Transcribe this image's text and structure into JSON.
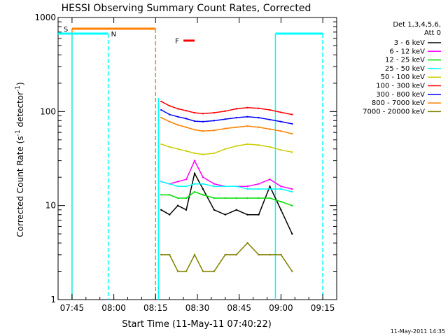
{
  "chart_data": {
    "type": "line",
    "title": "HESSI Observing Summary Count Rates, Corrected",
    "xlabel": "Start Time (11-May-11 07:40:22)",
    "ylabel_main": "Corrected Count Rate (s",
    "ylabel_sup1": "-1",
    "ylabel_mid": " detector",
    "ylabel_sup2": "-1",
    "ylabel_end": ")",
    "footer": "11-May-2011 14:35",
    "yscale": "log",
    "ylim": [
      1,
      1000
    ],
    "xlim_minutes": [
      "07:40",
      "09:20"
    ],
    "x_ticks": [
      "07:45",
      "08:00",
      "08:15",
      "08:30",
      "08:45",
      "09:00",
      "09:15"
    ],
    "y_ticks": [
      "1",
      "10",
      "100",
      "1000"
    ],
    "legend_header": [
      "Det 1,3,4,5,6,",
      "Att 0"
    ],
    "series": [
      {
        "name": "3 - 6 keV",
        "color": "#000000",
        "values": [
          9,
          8,
          10,
          9,
          22,
          15,
          9,
          8,
          9,
          8,
          8,
          16,
          9,
          5
        ]
      },
      {
        "name": "6 - 12 keV",
        "color": "#ff00ff",
        "values": [
          18,
          17,
          18,
          19,
          30,
          20,
          17,
          16,
          16,
          16,
          17,
          19,
          16,
          15
        ]
      },
      {
        "name": "12 - 25 keV",
        "color": "#00dd00",
        "values": [
          13,
          13,
          12,
          12,
          14,
          13,
          12,
          12,
          12,
          12,
          12,
          12,
          11,
          10
        ]
      },
      {
        "name": "25 - 50 keV",
        "color": "#00ffff",
        "values": [
          18,
          17,
          16,
          16,
          17,
          17,
          16,
          16,
          16,
          15,
          15,
          15,
          15,
          14
        ]
      },
      {
        "name": "50 - 100 keV",
        "color": "#cccc00",
        "values": [
          45,
          42,
          40,
          38,
          36,
          35,
          36,
          40,
          43,
          45,
          44,
          42,
          39,
          37
        ]
      },
      {
        "name": "100 - 300 keV",
        "color": "#ff0000",
        "values": [
          128,
          115,
          107,
          102,
          97,
          95,
          97,
          101,
          107,
          110,
          108,
          104,
          98,
          93
        ]
      },
      {
        "name": "300 - 800 keV",
        "color": "#0000ff",
        "values": [
          104,
          93,
          88,
          84,
          79,
          78,
          80,
          83,
          86,
          88,
          86,
          82,
          78,
          74
        ]
      },
      {
        "name": "800 - 7000 keV",
        "color": "#ff8000",
        "values": [
          86,
          78,
          72,
          68,
          64,
          62,
          63,
          66,
          68,
          70,
          68,
          65,
          62,
          58
        ]
      },
      {
        "name": "7000 - 20000 keV",
        "color": "#808000",
        "values": [
          3,
          3,
          2,
          2,
          3,
          2,
          2,
          3,
          3,
          4,
          3,
          3,
          3,
          2
        ]
      }
    ],
    "series_x_minutes": [
      "08:17",
      "08:20",
      "08:23",
      "08:26",
      "08:29",
      "08:32",
      "08:36",
      "08:40",
      "08:44",
      "08:48",
      "08:52",
      "08:56",
      "09:00",
      "09:04"
    ],
    "flags": [
      {
        "label": "S",
        "color": "#ff8000",
        "start": "07:45",
        "end": "08:15",
        "level_label": "S"
      },
      {
        "label": "N",
        "color": "#00ffff",
        "start": "07:40",
        "end": "07:58",
        "level_label": "N"
      },
      {
        "label": "F",
        "color": "#ff0000",
        "start": "08:25",
        "end": "08:29",
        "level_label": "F"
      }
    ]
  }
}
